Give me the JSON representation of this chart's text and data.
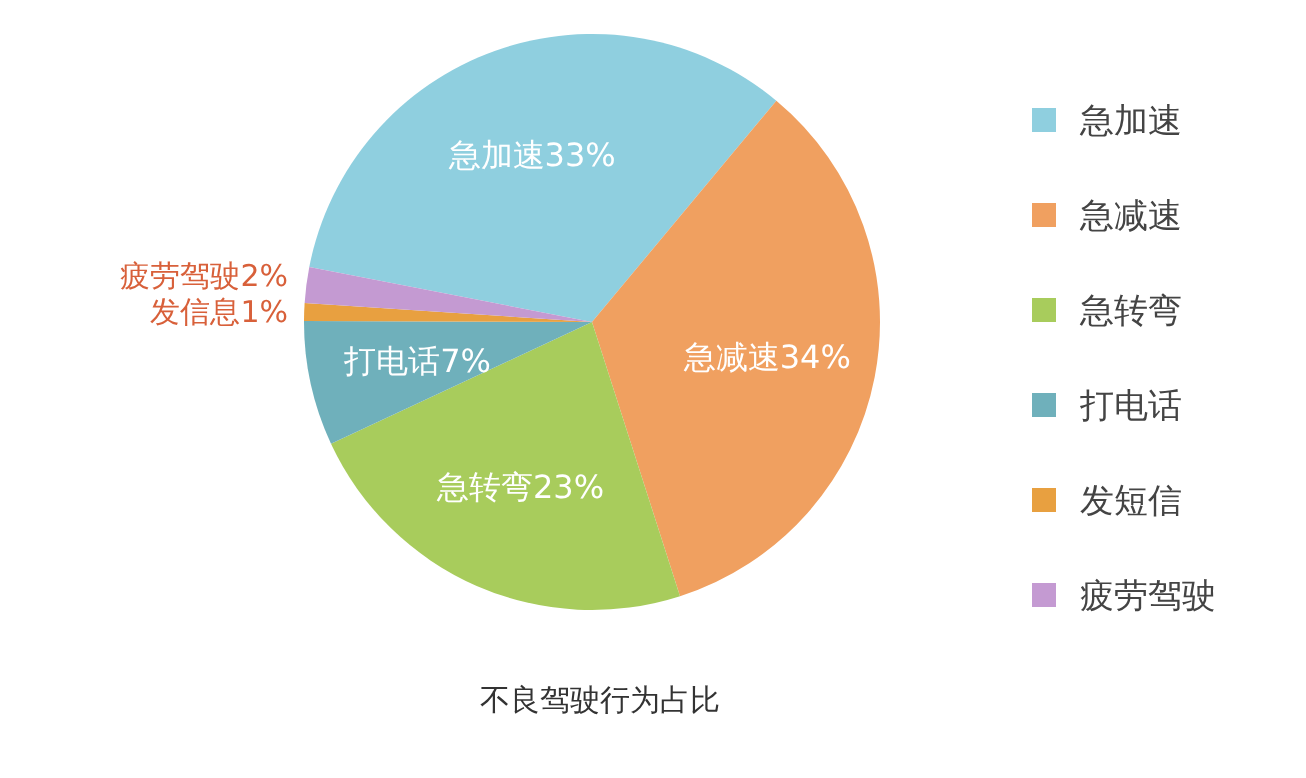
{
  "chart_data": {
    "type": "pie",
    "title": "不良驾驶行为占比",
    "categories": [
      "急加速",
      "急减速",
      "急转弯",
      "打电话",
      "发短信",
      "疲劳驾驶"
    ],
    "values": [
      33,
      34,
      23,
      7,
      1,
      2
    ],
    "colors": [
      "#8fcfdf",
      "#f0a060",
      "#a8cc5c",
      "#6fb0bb",
      "#e8a040",
      "#c49ad2"
    ],
    "value_labels": [
      "急加速33%",
      "急减速34%",
      "急转弯23%",
      "打电话7%",
      "发信息1%",
      "疲劳驾驶2%"
    ],
    "legend": "right"
  }
}
